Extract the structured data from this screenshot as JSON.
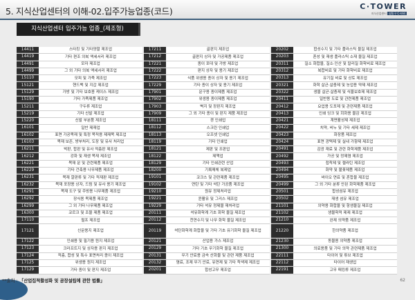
{
  "header": {
    "title": "5. 지식산업센터의 이해-02.입주가능업종(코드)",
    "logo": {
      "main": "C·TOWER",
      "sub": "지식산업센터",
      "badge": "성동구 C-타워"
    }
  },
  "section_title": "지식산업센터 입주가능 업종_(제조형)",
  "columns": [
    [
      {
        "code": "14411",
        "name": "스타킹 및 기타양말 제조업"
      },
      {
        "code": "14419",
        "name": "기타 편조 의복 액세서리 제조업"
      },
      {
        "code": "14491",
        "name": "모자 제조업"
      },
      {
        "code": "14499",
        "name": "그 외 기타 의복 액세서리 제조업"
      },
      {
        "code": "15110",
        "name": "모피 및 가죽 제조업"
      },
      {
        "code": "15121",
        "name": "핸드백 및 지갑 제조업"
      },
      {
        "code": "15129",
        "name": "가방 및 기타 보호용 케이스 제조업"
      },
      {
        "code": "15190",
        "name": "기타 가죽제품 제조업"
      },
      {
        "code": "15211",
        "name": "구두류 제조업"
      },
      {
        "code": "15219",
        "name": "기타 신발 제조업"
      },
      {
        "code": "15220",
        "name": "신발 부분품 제조업"
      },
      {
        "code": "16101",
        "name": "일반 제재업"
      },
      {
        "code": "16102",
        "name": "표면 가공목재 및 특정 목적용 제재목 제조업"
      },
      {
        "code": "16103",
        "name": "목재 보존, 방부처리, 도장 및 유사 처리업"
      },
      {
        "code": "16211",
        "name": "박판, 합판 및 유사 적층판 제조업"
      },
      {
        "code": "16212",
        "name": "강화 및 재생 목재 제조업"
      },
      {
        "code": "16221",
        "name": "목재 문 및 관련제품 제조업"
      },
      {
        "code": "16229",
        "name": "기타 건축용 나무제품 제조업"
      },
      {
        "code": "16231",
        "name": "목재 깔판류 및 기타 적재판 제조업"
      },
      {
        "code": "16232",
        "name": "목재 포장용 상자, 드럼 및 유사 용기 제조업"
      },
      {
        "code": "16291",
        "name": "목재 도구 및 주방용 나무제품 제조업"
      },
      {
        "code": "16292",
        "name": "장식용 목제품 제조업"
      },
      {
        "code": "16299",
        "name": "그 외 기타 나무제품 제조업"
      },
      {
        "code": "16300",
        "name": "코르크 및 조물 제품 제조업"
      },
      {
        "code": "17110",
        "name": "펄프 제조업"
      },
      {
        "code": "17121",
        "name": "신문용지 제조업",
        "tall": true
      },
      {
        "code": "17122",
        "name": "인쇄용 및 필기용 원지 제조업"
      },
      {
        "code": "17123",
        "name": "크라프트지 및 상자용 판지 제조업"
      },
      {
        "code": "17124",
        "name": "적층, 합성 및 특수 표면처리 종이 제조업"
      },
      {
        "code": "17125",
        "name": "위생용 원지 제조업"
      },
      {
        "code": "17129",
        "name": "기타 종이 및 판지 제조업"
      }
    ],
    [
      {
        "code": "17211",
        "name": "골판지 제조업"
      },
      {
        "code": "17212",
        "name": "골판지 상자 및 가공제품 제조업"
      },
      {
        "code": "17221",
        "name": "종이 포대 및 가방 제조업"
      },
      {
        "code": "17222",
        "name": "판지 상자 및 용기 제조업"
      },
      {
        "code": "17223",
        "name": "식품 위생용 종이 상자 및 용기 제조업"
      },
      {
        "code": "17229",
        "name": "기타 종이 상자 및 용기 제조업"
      },
      {
        "code": "17901",
        "name": "문구용 종이제품 제조업"
      },
      {
        "code": "17902",
        "name": "위생용 종이제품 제조업"
      },
      {
        "code": "17903",
        "name": "벽지 및 장판지 제조업"
      },
      {
        "code": "17909",
        "name": "그 외 기타 종이 및 판지 제품 제조업"
      },
      {
        "code": "18111",
        "name": "경 인쇄업"
      },
      {
        "code": "18112",
        "name": "스크린 인쇄업"
      },
      {
        "code": "18113",
        "name": "오프셋 인쇄업"
      },
      {
        "code": "18119",
        "name": "기타 인쇄업"
      },
      {
        "code": "18121",
        "name": "제판 및 조판업"
      },
      {
        "code": "18122",
        "name": "제책업"
      },
      {
        "code": "18129",
        "name": "기타 인쇄관련 산업"
      },
      {
        "code": "18200",
        "name": "기록매체 복제업"
      },
      {
        "code": "19101",
        "name": "코크스 및 관련제품 제조업"
      },
      {
        "code": "19102",
        "name": "연탄 및 기타 석탄 가공품 제조업"
      },
      {
        "code": "19210",
        "name": "원유 정제처리업"
      },
      {
        "code": "19221",
        "name": "윤활유 및 그리스 제조업"
      },
      {
        "code": "19229",
        "name": "기타 석유 정제물 재처리업"
      },
      {
        "code": "20111",
        "name": "석유화학계 기초 화학 물질 제조업"
      },
      {
        "code": "20112",
        "name": "천연수지 및 나무 화학 물질 제조업"
      },
      {
        "code": "20119",
        "name": "석탄화학계 화합물 및 기타 기초 유기화학 물질 제조업",
        "tall": true
      },
      {
        "code": "20121",
        "name": "산업용 가스 제조업"
      },
      {
        "code": "20129",
        "name": "기타 기초 무기화학 물질 제조업"
      },
      {
        "code": "20131",
        "name": "무기 안료용 금속 산화물 및 관련 제품 제조업"
      },
      {
        "code": "20132",
        "name": "염료, 조제 무기 안료, 유연제 및 기타 착색제 제조업"
      },
      {
        "code": "20201",
        "name": "합성고무 제조업"
      }
    ],
    [
      {
        "code": "20202",
        "name": "합성수지 및 기타 플라스틱 물질 제조업"
      },
      {
        "code": "20203",
        "name": "혼성 및 재생 플라스틱 소재 물질 제조업"
      },
      {
        "code": "20311",
        "name": "질소 화합물, 질소·인산 및 칼리질 화학비료 제조업"
      },
      {
        "code": "20312",
        "name": "복합비료 및 기타 화학비료 제조업"
      },
      {
        "code": "20313",
        "name": "유기질 비료 및 상토 제조업"
      },
      {
        "code": "20321",
        "name": "화학 살균·살충제 및 농업용 약제 제조업"
      },
      {
        "code": "20322",
        "name": "생물 살균·살충제 및 식물보호제 제조업"
      },
      {
        "code": "20411",
        "name": "일반용 도료 및 관련제품 제조업"
      },
      {
        "code": "20412",
        "name": "요업용 도포제 및 관련제품 제조업"
      },
      {
        "code": "20413",
        "name": "인쇄 잉크 및 회화용 물감 제조업"
      },
      {
        "code": "20421",
        "name": "계면활성제 제조업"
      },
      {
        "code": "20422",
        "name": "치약, 비누 및 기타 세제 제조업"
      },
      {
        "code": "20423",
        "name": "화장품 제조업"
      },
      {
        "code": "20424",
        "name": "표면 광택제 및 실내 가향제 제조업"
      },
      {
        "code": "20491",
        "name": "감광 재료 및 관련 화학제품 제조업"
      },
      {
        "code": "20492",
        "name": "가공 및 정제염 제조업"
      },
      {
        "code": "20493",
        "name": "접착제 및 젤라틴 제조업"
      },
      {
        "code": "20494",
        "name": "화약 및 불꽃제품 제조업"
      },
      {
        "code": "20495",
        "name": "바이오 연료 및 혼합물 제조업"
      },
      {
        "code": "20499",
        "name": "그 외 기타 분류 안된 화학제품 제조업"
      },
      {
        "code": "20501",
        "name": "합성섬유 제조업"
      },
      {
        "code": "20502",
        "name": "재생 섬유 제조업"
      },
      {
        "code": "21101",
        "name": "의약용 화합물 및 항생물질 제조업"
      },
      {
        "code": "21102",
        "name": "생물학적 제제 제조업"
      },
      {
        "code": "21210",
        "name": "완제 의약품 제조업"
      },
      {
        "code": "21220",
        "name": "한의약품 제조업",
        "tall": true
      },
      {
        "code": "21230",
        "name": "동물용 의약품 제조업"
      },
      {
        "code": "21300",
        "name": "의료용품 및 기타 의약 관련제품 제조업"
      },
      {
        "code": "22111",
        "name": "타이어 및 튜브 제조업"
      },
      {
        "code": "22112",
        "name": "타이어 재생업"
      },
      {
        "code": "22191",
        "name": "고무 패킹류 제조업"
      }
    ]
  ],
  "footer": {
    "source_prefix": "**출처 : ",
    "source": "「산업집적활성화 및 공장설립에 관한 법률」",
    "page_number": "62"
  }
}
